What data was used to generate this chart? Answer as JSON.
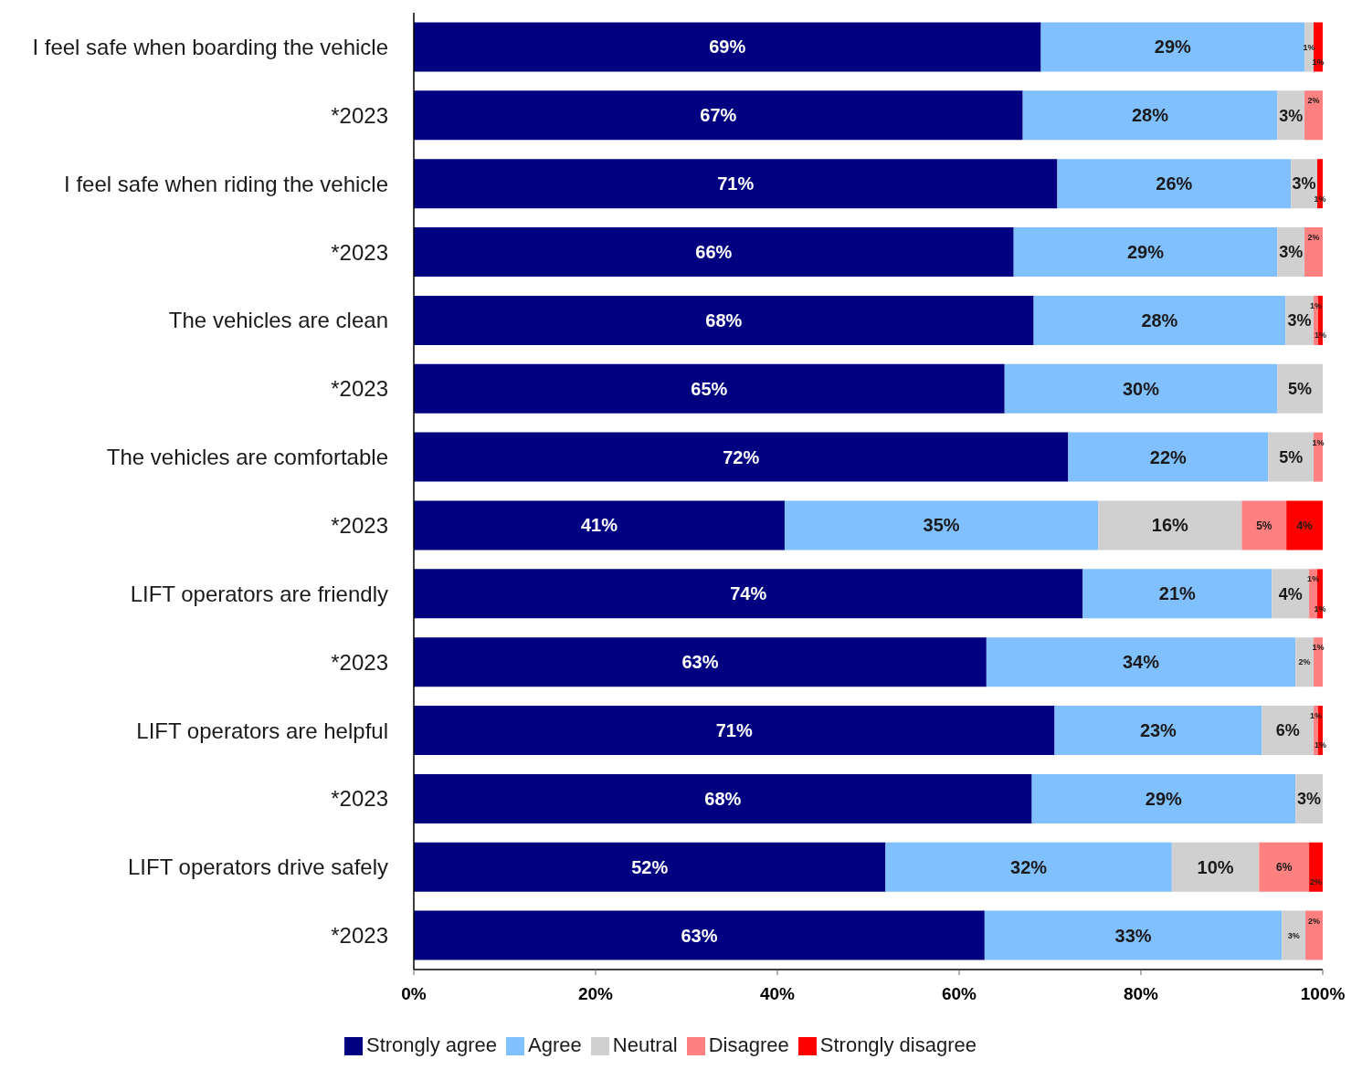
{
  "chart_data": {
    "type": "bar",
    "orientation": "horizontal",
    "stacked": true,
    "categories": [
      "I feel safe when boarding the vehicle",
      "*2023",
      "I feel safe when riding the vehicle",
      "*2023",
      "The vehicles are clean",
      "*2023",
      "The vehicles are comfortable",
      "*2023",
      "LIFT operators are friendly",
      "*2023",
      "LIFT operators are helpful",
      "*2023",
      "LIFT operators drive safely",
      "*2023"
    ],
    "series": [
      {
        "name": "Strongly agree",
        "color": "#000080",
        "values": [
          69,
          67,
          70.8,
          66,
          68.2,
          65,
          72,
          40.8,
          73.6,
          63,
          70.5,
          68,
          51.9,
          62.8
        ],
        "value_labels": [
          "69%",
          "67%",
          "71%",
          "66%",
          "68%",
          "65%",
          "72%",
          "41%",
          "74%",
          "63%",
          "71%",
          "68%",
          "52%",
          "63%"
        ]
      },
      {
        "name": "Agree",
        "color": "#80c0ff",
        "values": [
          29,
          28,
          25.7,
          29,
          27.7,
          30,
          22,
          34.5,
          20.8,
          34,
          22.8,
          29,
          31.5,
          32.7
        ],
        "value_labels": [
          "29%",
          "28%",
          "26%",
          "29%",
          "28%",
          "30%",
          "22%",
          "35%",
          "21%",
          "34%",
          "23%",
          "29%",
          "32%",
          "33%"
        ]
      },
      {
        "name": "Neutral",
        "color": "#d0d0d0",
        "values": [
          1,
          3,
          2.9,
          3,
          3.1,
          5,
          5,
          15.8,
          4.1,
          2,
          5.7,
          3,
          9.6,
          2.6
        ],
        "value_labels": [
          "1%",
          "3%",
          "3%",
          "3%",
          "3%",
          "5%",
          "5%",
          "16%",
          "4%",
          "2%",
          "6%",
          "3%",
          "10%",
          "3%"
        ]
      },
      {
        "name": "Disagree",
        "color": "#ff8080",
        "values": [
          0,
          2,
          0,
          2,
          0.5,
          0,
          1,
          4.9,
          0.9,
          1,
          0.5,
          0,
          5.5,
          1.9
        ],
        "value_labels": [
          null,
          "2%",
          null,
          "2%",
          "1%",
          null,
          "1%",
          "5%",
          "1%",
          "1%",
          "1%",
          null,
          "6%",
          "2%"
        ]
      },
      {
        "name": "Strongly disagree",
        "color": "#ff0000",
        "values": [
          1,
          0,
          0.6,
          0,
          0.5,
          0,
          0,
          4,
          0.6,
          0,
          0.5,
          0,
          1.5,
          0
        ],
        "value_labels": [
          "1%",
          null,
          "1%",
          null,
          "1%",
          null,
          null,
          "4%",
          "1%",
          null,
          "1%",
          null,
          "2%",
          null
        ]
      }
    ],
    "xlim": [
      0,
      100
    ],
    "xticks": [
      {
        "value": 0,
        "label": "0%"
      },
      {
        "value": 20,
        "label": "20%"
      },
      {
        "value": 40,
        "label": "40%"
      },
      {
        "value": 60,
        "label": "60%"
      },
      {
        "value": 80,
        "label": "80%"
      },
      {
        "value": 100,
        "label": "100%"
      }
    ],
    "legend": "bottom"
  }
}
